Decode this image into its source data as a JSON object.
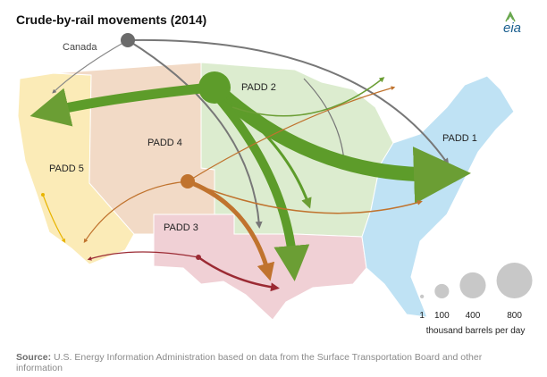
{
  "header": {
    "title": "Crude-by-rail movements (2014)",
    "logo": "eia"
  },
  "labels": {
    "canada": "Canada",
    "padd1": "PADD 1",
    "padd2": "PADD 2",
    "padd3": "PADD 3",
    "padd4": "PADD 4",
    "padd5": "PADD 5"
  },
  "legend": {
    "sizes": [
      1,
      100,
      400,
      800
    ],
    "unit": "thousand barrels per day"
  },
  "source": {
    "label": "Source:",
    "text": "U.S. Energy Information Administration based on data from the Surface Transportation Board and other information"
  }
}
